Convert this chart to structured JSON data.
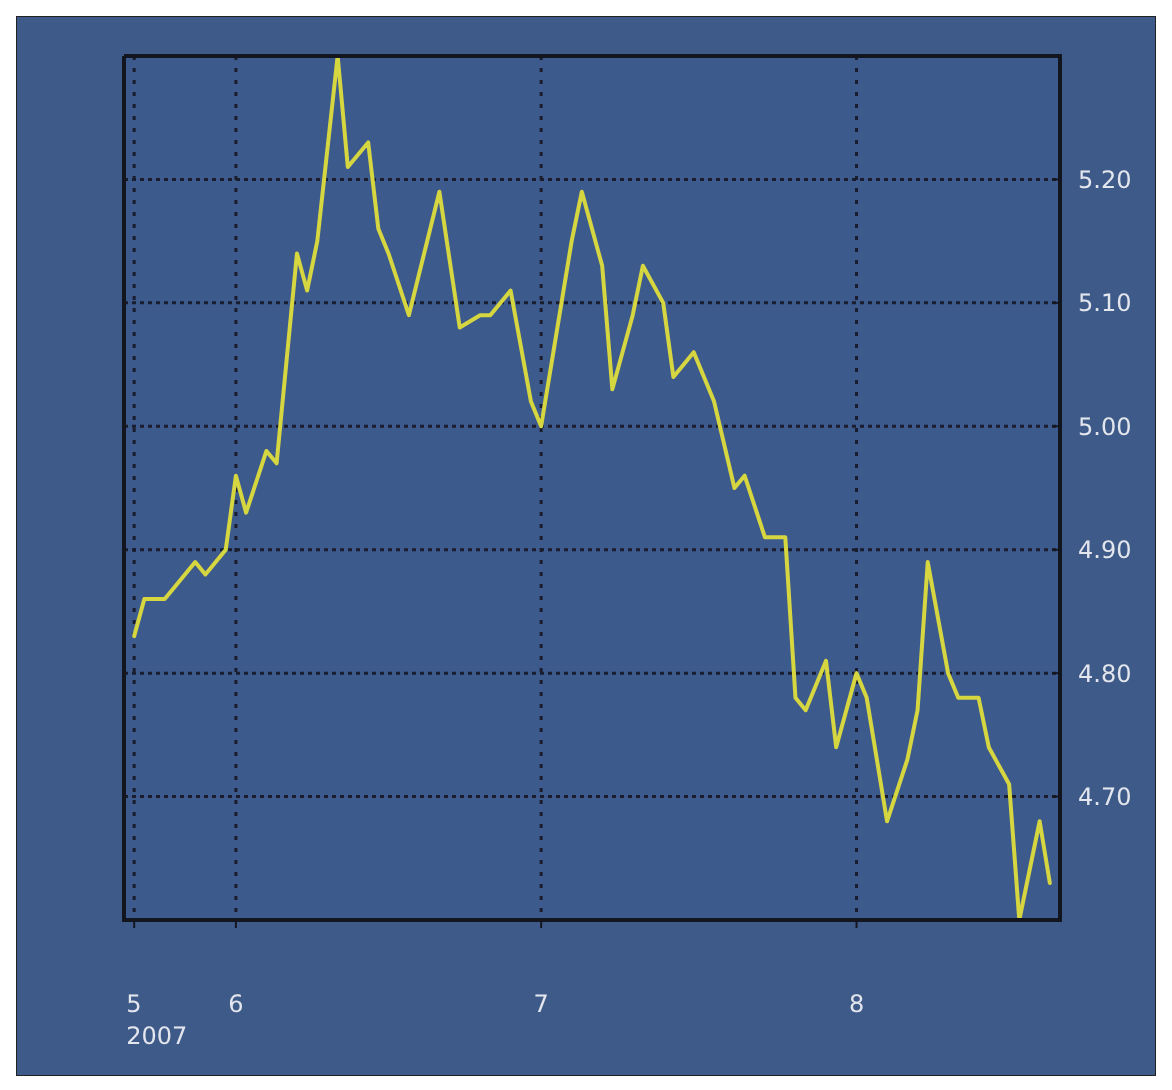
{
  "chart_data": {
    "type": "line",
    "x": [
      "2007-05-22",
      "2007-05-23",
      "2007-05-25",
      "2007-05-26",
      "2007-05-28",
      "2007-05-29",
      "2007-05-31",
      "2007-06-01",
      "2007-06-02",
      "2007-06-04",
      "2007-06-05",
      "2007-06-07",
      "2007-06-08",
      "2007-06-09",
      "2007-06-11",
      "2007-06-12",
      "2007-06-14",
      "2007-06-15",
      "2007-06-16",
      "2007-06-18",
      "2007-06-21",
      "2007-06-23",
      "2007-06-25",
      "2007-06-26",
      "2007-06-28",
      "2007-06-30",
      "2007-07-01",
      "2007-07-02",
      "2007-07-04",
      "2007-07-05",
      "2007-07-07",
      "2007-07-08",
      "2007-07-10",
      "2007-07-11",
      "2007-07-13",
      "2007-07-14",
      "2007-07-16",
      "2007-07-18",
      "2007-07-20",
      "2007-07-21",
      "2007-07-23",
      "2007-07-25",
      "2007-07-26",
      "2007-07-27",
      "2007-07-29",
      "2007-07-30",
      "2007-08-01",
      "2007-08-02",
      "2007-08-04",
      "2007-08-06",
      "2007-08-07",
      "2007-08-08",
      "2007-08-10",
      "2007-08-11",
      "2007-08-13",
      "2007-08-14",
      "2007-08-16",
      "2007-08-17",
      "2007-08-19",
      "2007-08-20"
    ],
    "series": [
      {
        "color": "#d6d640",
        "values": [
          4.83,
          4.86,
          4.86,
          4.87,
          4.89,
          4.88,
          4.9,
          4.96,
          4.93,
          4.98,
          4.97,
          5.14,
          5.11,
          5.15,
          5.3,
          5.21,
          5.23,
          5.16,
          5.14,
          5.09,
          5.19,
          5.08,
          5.09,
          5.09,
          5.11,
          5.02,
          5.0,
          5.05,
          5.15,
          5.19,
          5.13,
          5.03,
          5.09,
          5.13,
          5.1,
          5.04,
          5.06,
          5.02,
          4.95,
          4.96,
          4.91,
          4.91,
          4.78,
          4.77,
          4.81,
          4.74,
          4.8,
          4.78,
          4.68,
          4.73,
          4.77,
          4.89,
          4.8,
          4.78,
          4.78,
          4.74,
          4.71,
          4.6,
          4.68,
          4.63
        ]
      }
    ],
    "xlim": [
      "2007-05-21",
      "2007-08-21"
    ],
    "xticks": [
      {
        "value": "2007-05-22",
        "label": "5\n2007"
      },
      {
        "value": "2007-06-01",
        "label": "6"
      },
      {
        "value": "2007-07-01",
        "label": "7"
      },
      {
        "value": "2007-08-01",
        "label": "8"
      }
    ],
    "ylim": [
      4.6,
      5.3
    ],
    "yticks": [
      {
        "value": 4.7,
        "label": "4.70"
      },
      {
        "value": 4.8,
        "label": "4.80"
      },
      {
        "value": 4.9,
        "label": "4.90"
      },
      {
        "value": 5.0,
        "label": "5.00"
      },
      {
        "value": 5.1,
        "label": "5.10"
      },
      {
        "value": 5.2,
        "label": "5.20"
      }
    ],
    "grid": true,
    "marker": "none",
    "line_style": "solid"
  }
}
